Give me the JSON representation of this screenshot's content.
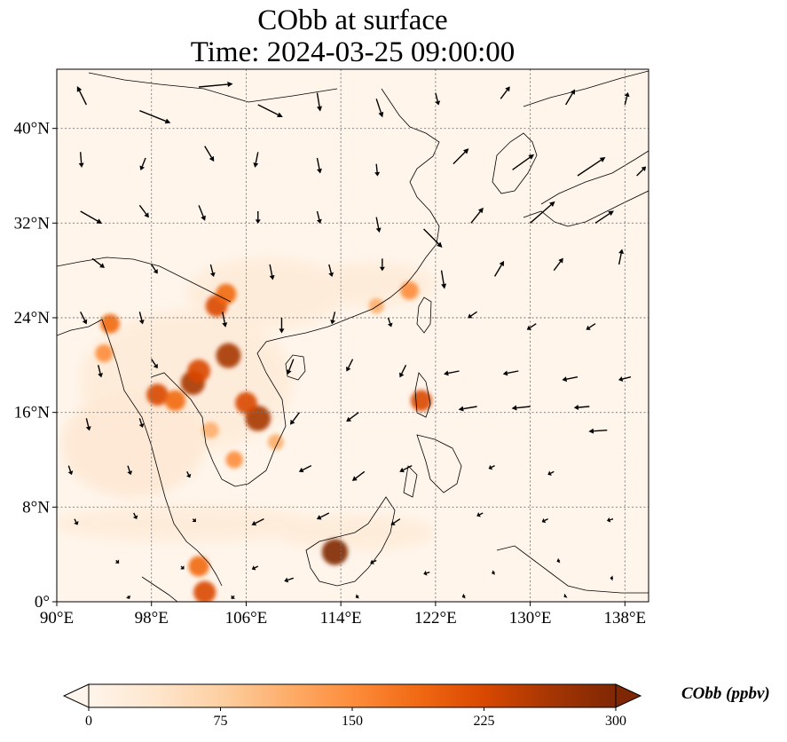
{
  "title": {
    "line1": "CObb at surface",
    "line2": "Time: 2024-03-25 09:00:00"
  },
  "map": {
    "lon_range": [
      90,
      140
    ],
    "lat_range": [
      0,
      45
    ],
    "lon_ticks": [
      {
        "value": 90,
        "label": "90°E"
      },
      {
        "value": 98,
        "label": "98°E"
      },
      {
        "value": 106,
        "label": "106°E"
      },
      {
        "value": 114,
        "label": "114°E"
      },
      {
        "value": 122,
        "label": "122°E"
      },
      {
        "value": 130,
        "label": "130°E"
      },
      {
        "value": 138,
        "label": "138°E"
      }
    ],
    "lat_ticks": [
      {
        "value": 0,
        "label": "0°"
      },
      {
        "value": 8,
        "label": "8°N"
      },
      {
        "value": 16,
        "label": "16°N"
      },
      {
        "value": 24,
        "label": "24°N"
      },
      {
        "value": 32,
        "label": "32°N"
      },
      {
        "value": 40,
        "label": "40°N"
      }
    ],
    "gridlines": true,
    "hotspots": [
      {
        "lon": 101.5,
        "lat": 18.5,
        "value": 260
      },
      {
        "lon": 104.5,
        "lat": 20.8,
        "value": 270
      },
      {
        "lon": 102.0,
        "lat": 19.5,
        "value": 240
      },
      {
        "lon": 107.0,
        "lat": 15.5,
        "value": 280
      },
      {
        "lon": 106.0,
        "lat": 16.8,
        "value": 220
      },
      {
        "lon": 98.5,
        "lat": 17.5,
        "value": 220
      },
      {
        "lon": 100.0,
        "lat": 17.0,
        "value": 200
      },
      {
        "lon": 94.5,
        "lat": 23.5,
        "value": 180
      },
      {
        "lon": 94.0,
        "lat": 21.0,
        "value": 150
      },
      {
        "lon": 103.5,
        "lat": 25.0,
        "value": 220
      },
      {
        "lon": 104.3,
        "lat": 26.0,
        "value": 200
      },
      {
        "lon": 119.8,
        "lat": 26.3,
        "value": 160
      },
      {
        "lon": 113.5,
        "lat": 4.2,
        "value": 290
      },
      {
        "lon": 102.0,
        "lat": 3.0,
        "value": 200
      },
      {
        "lon": 102.5,
        "lat": 0.8,
        "value": 230
      },
      {
        "lon": 120.8,
        "lat": 17.0,
        "value": 210
      },
      {
        "lon": 105.0,
        "lat": 12.0,
        "value": 140
      },
      {
        "lon": 103.0,
        "lat": 14.5,
        "value": 130
      },
      {
        "lon": 108.5,
        "lat": 13.5,
        "value": 120
      },
      {
        "lon": 117.0,
        "lat": 25.0,
        "value": 110
      }
    ]
  },
  "colorbar": {
    "label": "CObb (ppbv)",
    "min": 0,
    "max": 300,
    "ticks": [
      {
        "value": 0,
        "label": "0"
      },
      {
        "value": 75,
        "label": "75"
      },
      {
        "value": 150,
        "label": "150"
      },
      {
        "value": 225,
        "label": "225"
      },
      {
        "value": 300,
        "label": "300"
      }
    ],
    "colors": [
      "#fff5eb",
      "#fee6ce",
      "#fdd0a2",
      "#fdae6b",
      "#fd8d3c",
      "#f16913",
      "#d94801",
      "#a63603",
      "#7f2704"
    ],
    "extend": "both"
  },
  "wind_vectors": [
    {
      "lon": 92.5,
      "lat": 42.0,
      "u": -1.5,
      "v": 3.0
    },
    {
      "lon": 97.0,
      "lat": 41.5,
      "u": 5.0,
      "v": -2.0
    },
    {
      "lon": 102.0,
      "lat": 43.5,
      "u": 5.5,
      "v": 0.5
    },
    {
      "lon": 107.0,
      "lat": 42.0,
      "u": 4.0,
      "v": -2.0
    },
    {
      "lon": 112.0,
      "lat": 43.0,
      "u": 0.5,
      "v": -3.0
    },
    {
      "lon": 117.0,
      "lat": 42.5,
      "u": 1.0,
      "v": -3.0
    },
    {
      "lon": 122.0,
      "lat": 43.0,
      "u": 0.5,
      "v": -2.0
    },
    {
      "lon": 127.5,
      "lat": 42.5,
      "u": 1.5,
      "v": 2.0
    },
    {
      "lon": 133.0,
      "lat": 42.0,
      "u": 1.5,
      "v": 2.5
    },
    {
      "lon": 138.0,
      "lat": 42.0,
      "u": 0.5,
      "v": 2.0
    },
    {
      "lon": 92.0,
      "lat": 38.0,
      "u": 0.2,
      "v": -2.5
    },
    {
      "lon": 97.5,
      "lat": 37.5,
      "u": -0.8,
      "v": -2.0
    },
    {
      "lon": 102.5,
      "lat": 38.5,
      "u": 1.5,
      "v": -2.5
    },
    {
      "lon": 107.0,
      "lat": 38.0,
      "u": -0.5,
      "v": -2.5
    },
    {
      "lon": 112.0,
      "lat": 37.5,
      "u": 0.5,
      "v": -2.5
    },
    {
      "lon": 117.0,
      "lat": 37.0,
      "u": 0.2,
      "v": -2.0
    },
    {
      "lon": 123.5,
      "lat": 37.0,
      "u": 2.5,
      "v": 2.5
    },
    {
      "lon": 128.5,
      "lat": 36.5,
      "u": 3.5,
      "v": 2.5
    },
    {
      "lon": 134.0,
      "lat": 36.0,
      "u": 4.5,
      "v": 3.0
    },
    {
      "lon": 139.0,
      "lat": 36.0,
      "u": 1.5,
      "v": 1.5
    },
    {
      "lon": 92.0,
      "lat": 33.0,
      "u": 3.5,
      "v": -2.0
    },
    {
      "lon": 97.0,
      "lat": 33.5,
      "u": 1.5,
      "v": -2.0
    },
    {
      "lon": 102.0,
      "lat": 33.5,
      "u": 1.0,
      "v": -2.5
    },
    {
      "lon": 107.0,
      "lat": 33.0,
      "u": 0.0,
      "v": -2.0
    },
    {
      "lon": 112.0,
      "lat": 33.0,
      "u": 0.5,
      "v": -2.0
    },
    {
      "lon": 117.0,
      "lat": 32.5,
      "u": 0.5,
      "v": -2.5
    },
    {
      "lon": 121.0,
      "lat": 31.5,
      "u": 3.0,
      "v": -3.0
    },
    {
      "lon": 125.0,
      "lat": 32.0,
      "u": 2.0,
      "v": 2.5
    },
    {
      "lon": 130.0,
      "lat": 32.0,
      "u": 4.0,
      "v": 3.5
    },
    {
      "lon": 135.5,
      "lat": 32.0,
      "u": 3.0,
      "v": 2.0
    },
    {
      "lon": 93.0,
      "lat": 29.0,
      "u": 2.0,
      "v": -1.5
    },
    {
      "lon": 98.0,
      "lat": 28.5,
      "u": 1.0,
      "v": -1.5
    },
    {
      "lon": 103.0,
      "lat": 28.5,
      "u": 0.5,
      "v": -2.0
    },
    {
      "lon": 108.0,
      "lat": 28.5,
      "u": 0.5,
      "v": -2.5
    },
    {
      "lon": 113.0,
      "lat": 28.5,
      "u": 0.5,
      "v": -2.0
    },
    {
      "lon": 117.5,
      "lat": 29.0,
      "u": 0.0,
      "v": -2.0
    },
    {
      "lon": 122.5,
      "lat": 28.0,
      "u": 0.5,
      "v": -3.0
    },
    {
      "lon": 127.0,
      "lat": 27.5,
      "u": 1.5,
      "v": 2.5
    },
    {
      "lon": 132.0,
      "lat": 28.0,
      "u": 1.5,
      "v": 2.0
    },
    {
      "lon": 137.5,
      "lat": 28.5,
      "u": 0.5,
      "v": 2.5
    },
    {
      "lon": 92.0,
      "lat": 24.5,
      "u": 1.0,
      "v": -2.0
    },
    {
      "lon": 97.0,
      "lat": 24.5,
      "u": 0.5,
      "v": -2.0
    },
    {
      "lon": 104.0,
      "lat": 24.5,
      "u": 0.5,
      "v": -2.5
    },
    {
      "lon": 109.0,
      "lat": 24.0,
      "u": 0.0,
      "v": -2.5
    },
    {
      "lon": 113.5,
      "lat": 24.5,
      "u": -0.5,
      "v": -2.0
    },
    {
      "lon": 118.0,
      "lat": 24.0,
      "u": 0.5,
      "v": -1.5
    },
    {
      "lon": 125.5,
      "lat": 24.5,
      "u": -1.5,
      "v": -1.0
    },
    {
      "lon": 130.5,
      "lat": 23.5,
      "u": -1.5,
      "v": -1.0
    },
    {
      "lon": 135.5,
      "lat": 23.5,
      "u": -1.5,
      "v": -1.0
    },
    {
      "lon": 93.5,
      "lat": 20.0,
      "u": 0.5,
      "v": -2.0
    },
    {
      "lon": 98.0,
      "lat": 20.5,
      "u": 1.0,
      "v": -1.5
    },
    {
      "lon": 110.0,
      "lat": 20.5,
      "u": -1.0,
      "v": -2.5
    },
    {
      "lon": 115.0,
      "lat": 20.5,
      "u": -1.0,
      "v": -2.0
    },
    {
      "lon": 119.5,
      "lat": 20.0,
      "u": -1.0,
      "v": -2.0
    },
    {
      "lon": 124.0,
      "lat": 19.5,
      "u": -2.5,
      "v": -0.5
    },
    {
      "lon": 129.0,
      "lat": 19.5,
      "u": -2.5,
      "v": -0.5
    },
    {
      "lon": 134.0,
      "lat": 19.0,
      "u": -2.5,
      "v": -0.5
    },
    {
      "lon": 138.5,
      "lat": 19.0,
      "u": -2.0,
      "v": -0.5
    },
    {
      "lon": 92.5,
      "lat": 15.5,
      "u": 0.5,
      "v": -2.0
    },
    {
      "lon": 97.0,
      "lat": 15.5,
      "u": 0.5,
      "v": -1.5
    },
    {
      "lon": 110.5,
      "lat": 16.0,
      "u": -1.5,
      "v": -2.0
    },
    {
      "lon": 115.5,
      "lat": 16.0,
      "u": -2.0,
      "v": -1.5
    },
    {
      "lon": 125.5,
      "lat": 16.5,
      "u": -3.0,
      "v": -0.5
    },
    {
      "lon": 130.0,
      "lat": 16.5,
      "u": -3.0,
      "v": -0.3
    },
    {
      "lon": 135.0,
      "lat": 16.5,
      "u": -2.5,
      "v": -0.2
    },
    {
      "lon": 136.5,
      "lat": 14.5,
      "u": -3.0,
      "v": -0.2
    },
    {
      "lon": 91.0,
      "lat": 11.5,
      "u": 0.5,
      "v": -1.5
    },
    {
      "lon": 96.0,
      "lat": 11.5,
      "u": 0.5,
      "v": -1.5
    },
    {
      "lon": 101.0,
      "lat": 11.0,
      "u": 0.5,
      "v": -1.0
    },
    {
      "lon": 111.5,
      "lat": 11.5,
      "u": -2.0,
      "v": -1.0
    },
    {
      "lon": 116.0,
      "lat": 11.0,
      "u": -2.0,
      "v": -1.5
    },
    {
      "lon": 120.0,
      "lat": 11.5,
      "u": -2.0,
      "v": -1.0
    },
    {
      "lon": 127.0,
      "lat": 11.5,
      "u": -1.0,
      "v": -0.5
    },
    {
      "lon": 132.0,
      "lat": 11.0,
      "u": -1.0,
      "v": -0.5
    },
    {
      "lon": 91.5,
      "lat": 7.0,
      "u": 0.5,
      "v": -1.0
    },
    {
      "lon": 96.5,
      "lat": 7.5,
      "u": 0.5,
      "v": -1.0
    },
    {
      "lon": 101.5,
      "lat": 7.0,
      "u": 0.5,
      "v": -0.5
    },
    {
      "lon": 107.5,
      "lat": 7.0,
      "u": -2.0,
      "v": -1.0
    },
    {
      "lon": 113.0,
      "lat": 7.5,
      "u": -2.0,
      "v": -1.0
    },
    {
      "lon": 119.0,
      "lat": 7.0,
      "u": -1.5,
      "v": -1.0
    },
    {
      "lon": 126.0,
      "lat": 7.5,
      "u": -1.0,
      "v": -0.5
    },
    {
      "lon": 131.5,
      "lat": 7.0,
      "u": -1.0,
      "v": -0.5
    },
    {
      "lon": 137.0,
      "lat": 7.0,
      "u": -1.0,
      "v": -0.3
    },
    {
      "lon": 95.0,
      "lat": 3.5,
      "u": 0.5,
      "v": -0.5
    },
    {
      "lon": 100.5,
      "lat": 3.0,
      "u": 0.5,
      "v": -0.5
    },
    {
      "lon": 107.0,
      "lat": 3.0,
      "u": -1.0,
      "v": -0.5
    },
    {
      "lon": 110.0,
      "lat": 2.0,
      "u": -1.5,
      "v": -0.5
    },
    {
      "lon": 117.0,
      "lat": 3.5,
      "u": -1.0,
      "v": -0.5
    },
    {
      "lon": 121.5,
      "lat": 2.5,
      "u": -1.0,
      "v": -0.3
    },
    {
      "lon": 127.0,
      "lat": 2.5,
      "u": -0.5,
      "v": -0.2
    },
    {
      "lon": 132.5,
      "lat": 3.5,
      "u": -0.5,
      "v": -0.2
    },
    {
      "lon": 137.0,
      "lat": 2.0,
      "u": -0.5,
      "v": 0.0
    },
    {
      "lon": 96.0,
      "lat": 0.5,
      "u": 0.3,
      "v": -0.5
    },
    {
      "lon": 105.0,
      "lat": 0.5,
      "u": -0.5,
      "v": -0.5
    },
    {
      "lon": 115.5,
      "lat": 0.5,
      "u": -0.5,
      "v": -0.3
    },
    {
      "lon": 124.5,
      "lat": 0.5,
      "u": -0.5,
      "v": -0.2
    },
    {
      "lon": 133.0,
      "lat": 0.5,
      "u": -0.3,
      "v": -0.2
    }
  ]
}
